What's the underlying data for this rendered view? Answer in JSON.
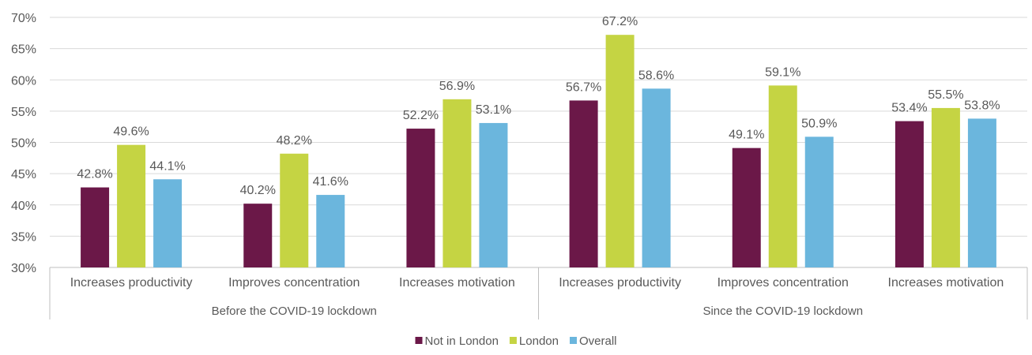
{
  "chart_data": {
    "type": "bar",
    "title": "",
    "xlabel": "",
    "ylabel": "",
    "ylim": [
      30,
      70
    ],
    "yticks": [
      "30%",
      "35%",
      "40%",
      "45%",
      "50%",
      "55%",
      "60%",
      "65%",
      "70%"
    ],
    "grid": true,
    "legend_position": "bottom",
    "groups": [
      {
        "label": "Before the COVID-19 lockdown",
        "categories": [
          "Increases productivity",
          "Improves concentration",
          "Increases motivation"
        ]
      },
      {
        "label": "Since the COVID-19 lockdown",
        "categories": [
          "Increases productivity",
          "Improves concentration",
          "Increases motivation"
        ]
      }
    ],
    "series": [
      {
        "name": "Not in London",
        "color": "#6B1848",
        "values": [
          42.8,
          40.2,
          52.2,
          56.7,
          49.1,
          53.4
        ],
        "labels": [
          "42.8%",
          "40.2%",
          "52.2%",
          "56.7%",
          "49.1%",
          "53.4%"
        ]
      },
      {
        "name": "London",
        "color": "#C5D443",
        "values": [
          49.6,
          48.2,
          56.9,
          67.2,
          59.1,
          55.5
        ],
        "labels": [
          "49.6%",
          "48.2%",
          "56.9%",
          "67.2%",
          "59.1%",
          "55.5%"
        ]
      },
      {
        "name": "Overall",
        "color": "#6BB6DD",
        "values": [
          44.1,
          41.6,
          53.1,
          58.6,
          50.9,
          53.8
        ],
        "labels": [
          "44.1%",
          "41.6%",
          "53.1%",
          "58.6%",
          "50.9%",
          "53.8%"
        ]
      }
    ]
  }
}
